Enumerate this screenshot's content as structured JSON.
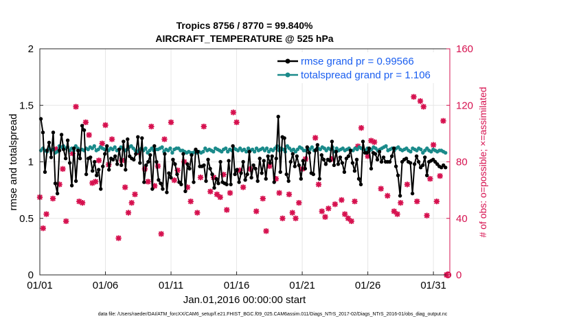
{
  "chart_data": {
    "type": "line",
    "title": "Tropics 8756 / 8770 = 99.840%",
    "subtitle": "AIRCRAFT_TEMPERATURE @ 525 hPa",
    "xlabel": "Jan.01,2016 00:00:00 start",
    "ylabel": "rmse and totalspread",
    "ylabel_right": "# of obs: o=possible; ×=assimilated",
    "footnote": "data file: /Users/raeder/DAI/ATM_forcXX/CAM6_setup/f.e21.FHIST_BGC.f09_025.CAM6assim.011/Diags_NTrS_2017-02/Diags_NTrS_2016-01/obs_diag_output.nc",
    "x_tick_labels": [
      "01/01",
      "01/06",
      "01/11",
      "01/16",
      "01/21",
      "01/26",
      "01/31"
    ],
    "x_tick_days": [
      0,
      5,
      10,
      15,
      20,
      25,
      30
    ],
    "xlim": [
      0,
      31.25
    ],
    "ylim": [
      0,
      2
    ],
    "y_ticks": [
      "0",
      "0.5",
      "1",
      "1.5",
      "2"
    ],
    "ylim_right": [
      0,
      160
    ],
    "y_ticks_right": [
      "0",
      "40",
      "80",
      "120",
      "160"
    ],
    "grid": true,
    "legend_position": "top-right",
    "colors": {
      "rmse": "#000000",
      "spread": "#1a8a8a",
      "obs": "#d6114f",
      "legend_text": "#1a5ef0"
    },
    "series": [
      {
        "name": "rmse grand pr = 0.99566",
        "values": [
          1.38,
          1.26,
          0.91,
          1.1,
          1.17,
          1.04,
          1.26,
          0.81,
          0.72,
          1.1,
          1.24,
          1.11,
          1.03,
          1.19,
          0.99,
          0.79,
          1.12,
          0.83,
          1.1,
          1.03,
          1.32,
          1.28,
          0.89,
          1.03,
          1.04,
          0.92,
          1.0,
          0.88,
          0.93,
          0.76,
          0.96,
          1.07,
          1.14,
          0.93,
          1.03,
          1.02,
          1.05,
          0.98,
          1.11,
          0.97,
          1.18,
          0.93,
          1.2,
          1.05,
          1.03,
          1.02,
          1.07,
          1.22,
          0.99,
          1.21,
          0.82,
          0.97,
          1.0,
          1.06,
          0.76,
          1.14,
          1.0,
          0.84,
          0.81,
          0.76,
          1.07,
          0.73,
          0.9,
          0.86,
          1.02,
          0.98,
          0.89,
          0.82,
          0.8,
          1.07,
          0.74,
          0.98,
          0.94,
          1.06,
          0.82,
          1.11,
          1.09,
          0.96,
          0.96,
          0.97,
          0.83,
          1.02,
          0.94,
          0.89,
          0.77,
          0.85,
          0.81,
          1.0,
          0.82,
          0.81,
          0.8,
          1.01,
          0.8,
          1.14,
          0.89,
          0.93,
          0.82,
          0.9,
          1.0,
          0.84,
          0.89,
          1.09,
          0.86,
          0.97,
          0.94,
          0.83,
          1.03,
          0.9,
          1.01,
          0.85,
          1.05,
          0.99,
          1.05,
          0.82,
          1.03,
          1.4,
          0.91,
          1.22,
          1.21,
          0.89,
          0.83,
          1.0,
          1.07,
          0.96,
          1.05,
          0.97,
          0.85,
          1.01,
          0.94,
          1.13,
          1.08,
          0.9,
          0.89,
          1.1,
          1.15,
          0.85,
          1.06,
          1.02,
          0.98,
          1.02,
          1.01,
          1.18,
          0.97,
          1.09,
          0.98,
          1.04,
          0.99,
          0.91,
          1.03,
          1.05,
          1.1,
          0.99,
          0.92,
          1.02,
          0.85,
          0.8,
          1.18,
          1.08,
          1.08,
          1.12,
          0.94,
          1.08,
          1.07,
          1.02,
          1.09,
          1.0,
          1.04,
          1.0,
          1.0,
          1.0,
          1.05,
          1.12,
          0.96,
          0.88,
          0.7,
          1.0,
          1.02,
          1.03,
          1.0,
          0.99,
          0.72,
          0.98,
          1.05,
          1.0,
          0.95,
          0.97,
          1.04,
          0.88,
          1.0,
          1.01,
          1.02,
          1.0,
          0.98,
          0.96,
          0.95,
          0.97,
          0.95
        ]
      },
      {
        "name": "totalspread grand pr = 1.106",
        "values": [
          1.1,
          1.12,
          1.1,
          1.09,
          1.12,
          1.1,
          1.11,
          1.08,
          1.09,
          1.14,
          1.13,
          1.14,
          1.12,
          1.13,
          1.1,
          1.12,
          1.1,
          1.14,
          1.12,
          1.1,
          1.11,
          1.1,
          1.12,
          1.11,
          1.13,
          1.12,
          1.14,
          1.1,
          1.11,
          1.13,
          1.12,
          1.11,
          1.12,
          1.1,
          1.12,
          1.11,
          1.13,
          1.1,
          1.11,
          1.13,
          1.12,
          1.1,
          1.11,
          1.13,
          1.14,
          1.12,
          1.1,
          1.09,
          1.11,
          1.12,
          1.1,
          1.12,
          1.08,
          1.1,
          1.12,
          1.1,
          1.11,
          1.11,
          1.12,
          1.13,
          1.09,
          1.11,
          1.1,
          1.12,
          1.08,
          1.11,
          1.12,
          1.12,
          1.1,
          1.1,
          1.09,
          1.08,
          1.09,
          1.08,
          1.08,
          1.09,
          1.08,
          1.09,
          1.08,
          1.09,
          1.12,
          1.1,
          1.11,
          1.1,
          1.09,
          1.12,
          1.11,
          1.1,
          1.09,
          1.11,
          1.12,
          1.09,
          1.11,
          1.1,
          1.12,
          1.11,
          1.1,
          1.12,
          1.1,
          1.11,
          1.09,
          1.12,
          1.1,
          1.11,
          1.09,
          1.12,
          1.1,
          1.11,
          1.12,
          1.1,
          1.12,
          1.09,
          1.11,
          1.1,
          1.12,
          1.14,
          1.1,
          1.12,
          1.11,
          1.09,
          1.14,
          1.12,
          1.1,
          1.11,
          1.09,
          1.11,
          1.13,
          1.12,
          1.1,
          1.1,
          1.12,
          1.11,
          1.13,
          1.1,
          1.11,
          1.12,
          1.11,
          1.13,
          1.12,
          1.1,
          1.12,
          1.11,
          1.13,
          1.09,
          1.12,
          1.1,
          1.11,
          1.12,
          1.1,
          1.11,
          1.12,
          1.1,
          1.1,
          1.12,
          1.11,
          1.13,
          1.12,
          1.11,
          1.1,
          1.12,
          1.1,
          1.11,
          1.13,
          1.12,
          1.1,
          1.11,
          1.12,
          1.13,
          1.14,
          1.1,
          1.11,
          1.12,
          1.1,
          1.12,
          1.13,
          1.11,
          1.1,
          1.11,
          1.12,
          1.1,
          1.09,
          1.12,
          1.11,
          1.1,
          1.12,
          1.11,
          1.08,
          1.1,
          1.12,
          1.1,
          1.09,
          1.11,
          1.1,
          1.09,
          1.1,
          1.1,
          1.09,
          1.08
        ]
      }
    ],
    "obs_counts": [
      {
        "day": 0.0,
        "n": 55
      },
      {
        "day": 0.25,
        "n": 33
      },
      {
        "day": 0.5,
        "n": 43
      },
      {
        "day": 1.0,
        "n": 54
      },
      {
        "day": 1.25,
        "n": 89
      },
      {
        "day": 1.5,
        "n": 64
      },
      {
        "day": 1.75,
        "n": 75
      },
      {
        "day": 2.0,
        "n": 38
      },
      {
        "day": 2.5,
        "n": 86
      },
      {
        "day": 2.75,
        "n": 119
      },
      {
        "day": 3.0,
        "n": 52
      },
      {
        "day": 3.25,
        "n": 51
      },
      {
        "day": 3.5,
        "n": 108
      },
      {
        "day": 3.75,
        "n": 99
      },
      {
        "day": 4.0,
        "n": 65
      },
      {
        "day": 4.25,
        "n": 66
      },
      {
        "day": 4.5,
        "n": 81
      },
      {
        "day": 4.75,
        "n": 93
      },
      {
        "day": 5.0,
        "n": 106
      },
      {
        "day": 5.25,
        "n": 78
      },
      {
        "day": 5.5,
        "n": 96
      },
      {
        "day": 6.0,
        "n": 26
      },
      {
        "day": 6.25,
        "n": 81
      },
      {
        "day": 6.5,
        "n": 62
      },
      {
        "day": 6.75,
        "n": 44
      },
      {
        "day": 7.0,
        "n": 51
      },
      {
        "day": 7.25,
        "n": 57
      },
      {
        "day": 7.5,
        "n": 87
      },
      {
        "day": 8.0,
        "n": 75
      },
      {
        "day": 8.25,
        "n": 66
      },
      {
        "day": 8.5,
        "n": 105
      },
      {
        "day": 8.75,
        "n": 63
      },
      {
        "day": 9.0,
        "n": 77
      },
      {
        "day": 9.25,
        "n": 29
      },
      {
        "day": 9.5,
        "n": 96
      },
      {
        "day": 10.0,
        "n": 108
      },
      {
        "day": 10.25,
        "n": 67
      },
      {
        "day": 10.5,
        "n": 74
      },
      {
        "day": 11.0,
        "n": 80
      },
      {
        "day": 11.25,
        "n": 62
      },
      {
        "day": 11.5,
        "n": 52
      },
      {
        "day": 12.0,
        "n": 44
      },
      {
        "day": 12.25,
        "n": 69
      },
      {
        "day": 12.5,
        "n": 105
      },
      {
        "day": 13.0,
        "n": 59
      },
      {
        "day": 13.25,
        "n": 69
      },
      {
        "day": 13.5,
        "n": 57
      },
      {
        "day": 13.75,
        "n": 55
      },
      {
        "day": 14.0,
        "n": 71
      },
      {
        "day": 14.25,
        "n": 46
      },
      {
        "day": 14.5,
        "n": 58
      },
      {
        "day": 14.75,
        "n": 115
      },
      {
        "day": 15.0,
        "n": 108
      },
      {
        "day": 15.25,
        "n": 74
      },
      {
        "day": 15.5,
        "n": 62
      },
      {
        "day": 16.0,
        "n": 75
      },
      {
        "day": 16.5,
        "n": 45
      },
      {
        "day": 17.0,
        "n": 54
      },
      {
        "day": 17.25,
        "n": 31
      },
      {
        "day": 17.5,
        "n": 77
      },
      {
        "day": 18.0,
        "n": 68
      },
      {
        "day": 18.25,
        "n": 58
      },
      {
        "day": 18.5,
        "n": 40
      },
      {
        "day": 19.0,
        "n": 57
      },
      {
        "day": 19.25,
        "n": 44
      },
      {
        "day": 19.5,
        "n": 40
      },
      {
        "day": 19.75,
        "n": 51
      },
      {
        "day": 20.0,
        "n": 75
      },
      {
        "day": 20.25,
        "n": 82
      },
      {
        "day": 21.0,
        "n": 97
      },
      {
        "day": 21.25,
        "n": 64
      },
      {
        "day": 21.5,
        "n": 45
      },
      {
        "day": 21.75,
        "n": 41
      },
      {
        "day": 22.0,
        "n": 47
      },
      {
        "day": 22.25,
        "n": 82
      },
      {
        "day": 22.5,
        "n": 50
      },
      {
        "day": 23.0,
        "n": 53
      },
      {
        "day": 23.25,
        "n": 43
      },
      {
        "day": 23.5,
        "n": 40
      },
      {
        "day": 23.75,
        "n": 38
      },
      {
        "day": 24.0,
        "n": 52
      },
      {
        "day": 24.25,
        "n": 91
      },
      {
        "day": 24.5,
        "n": 104
      },
      {
        "day": 25.0,
        "n": 84
      },
      {
        "day": 25.25,
        "n": 95
      },
      {
        "day": 25.5,
        "n": 94
      },
      {
        "day": 26.0,
        "n": 61
      },
      {
        "day": 26.5,
        "n": 56
      },
      {
        "day": 27.0,
        "n": 45
      },
      {
        "day": 27.25,
        "n": 43
      },
      {
        "day": 27.5,
        "n": 51
      },
      {
        "day": 28.0,
        "n": 64
      },
      {
        "day": 28.5,
        "n": 126
      },
      {
        "day": 28.75,
        "n": 52
      },
      {
        "day": 29.0,
        "n": 123
      },
      {
        "day": 29.25,
        "n": 119
      },
      {
        "day": 29.5,
        "n": 42
      },
      {
        "day": 29.75,
        "n": 68
      },
      {
        "day": 30.0,
        "n": 92
      },
      {
        "day": 30.25,
        "n": 52
      },
      {
        "day": 30.5,
        "n": 70
      },
      {
        "day": 30.75,
        "n": 109
      },
      {
        "day": 31.0,
        "n": 0
      }
    ]
  }
}
